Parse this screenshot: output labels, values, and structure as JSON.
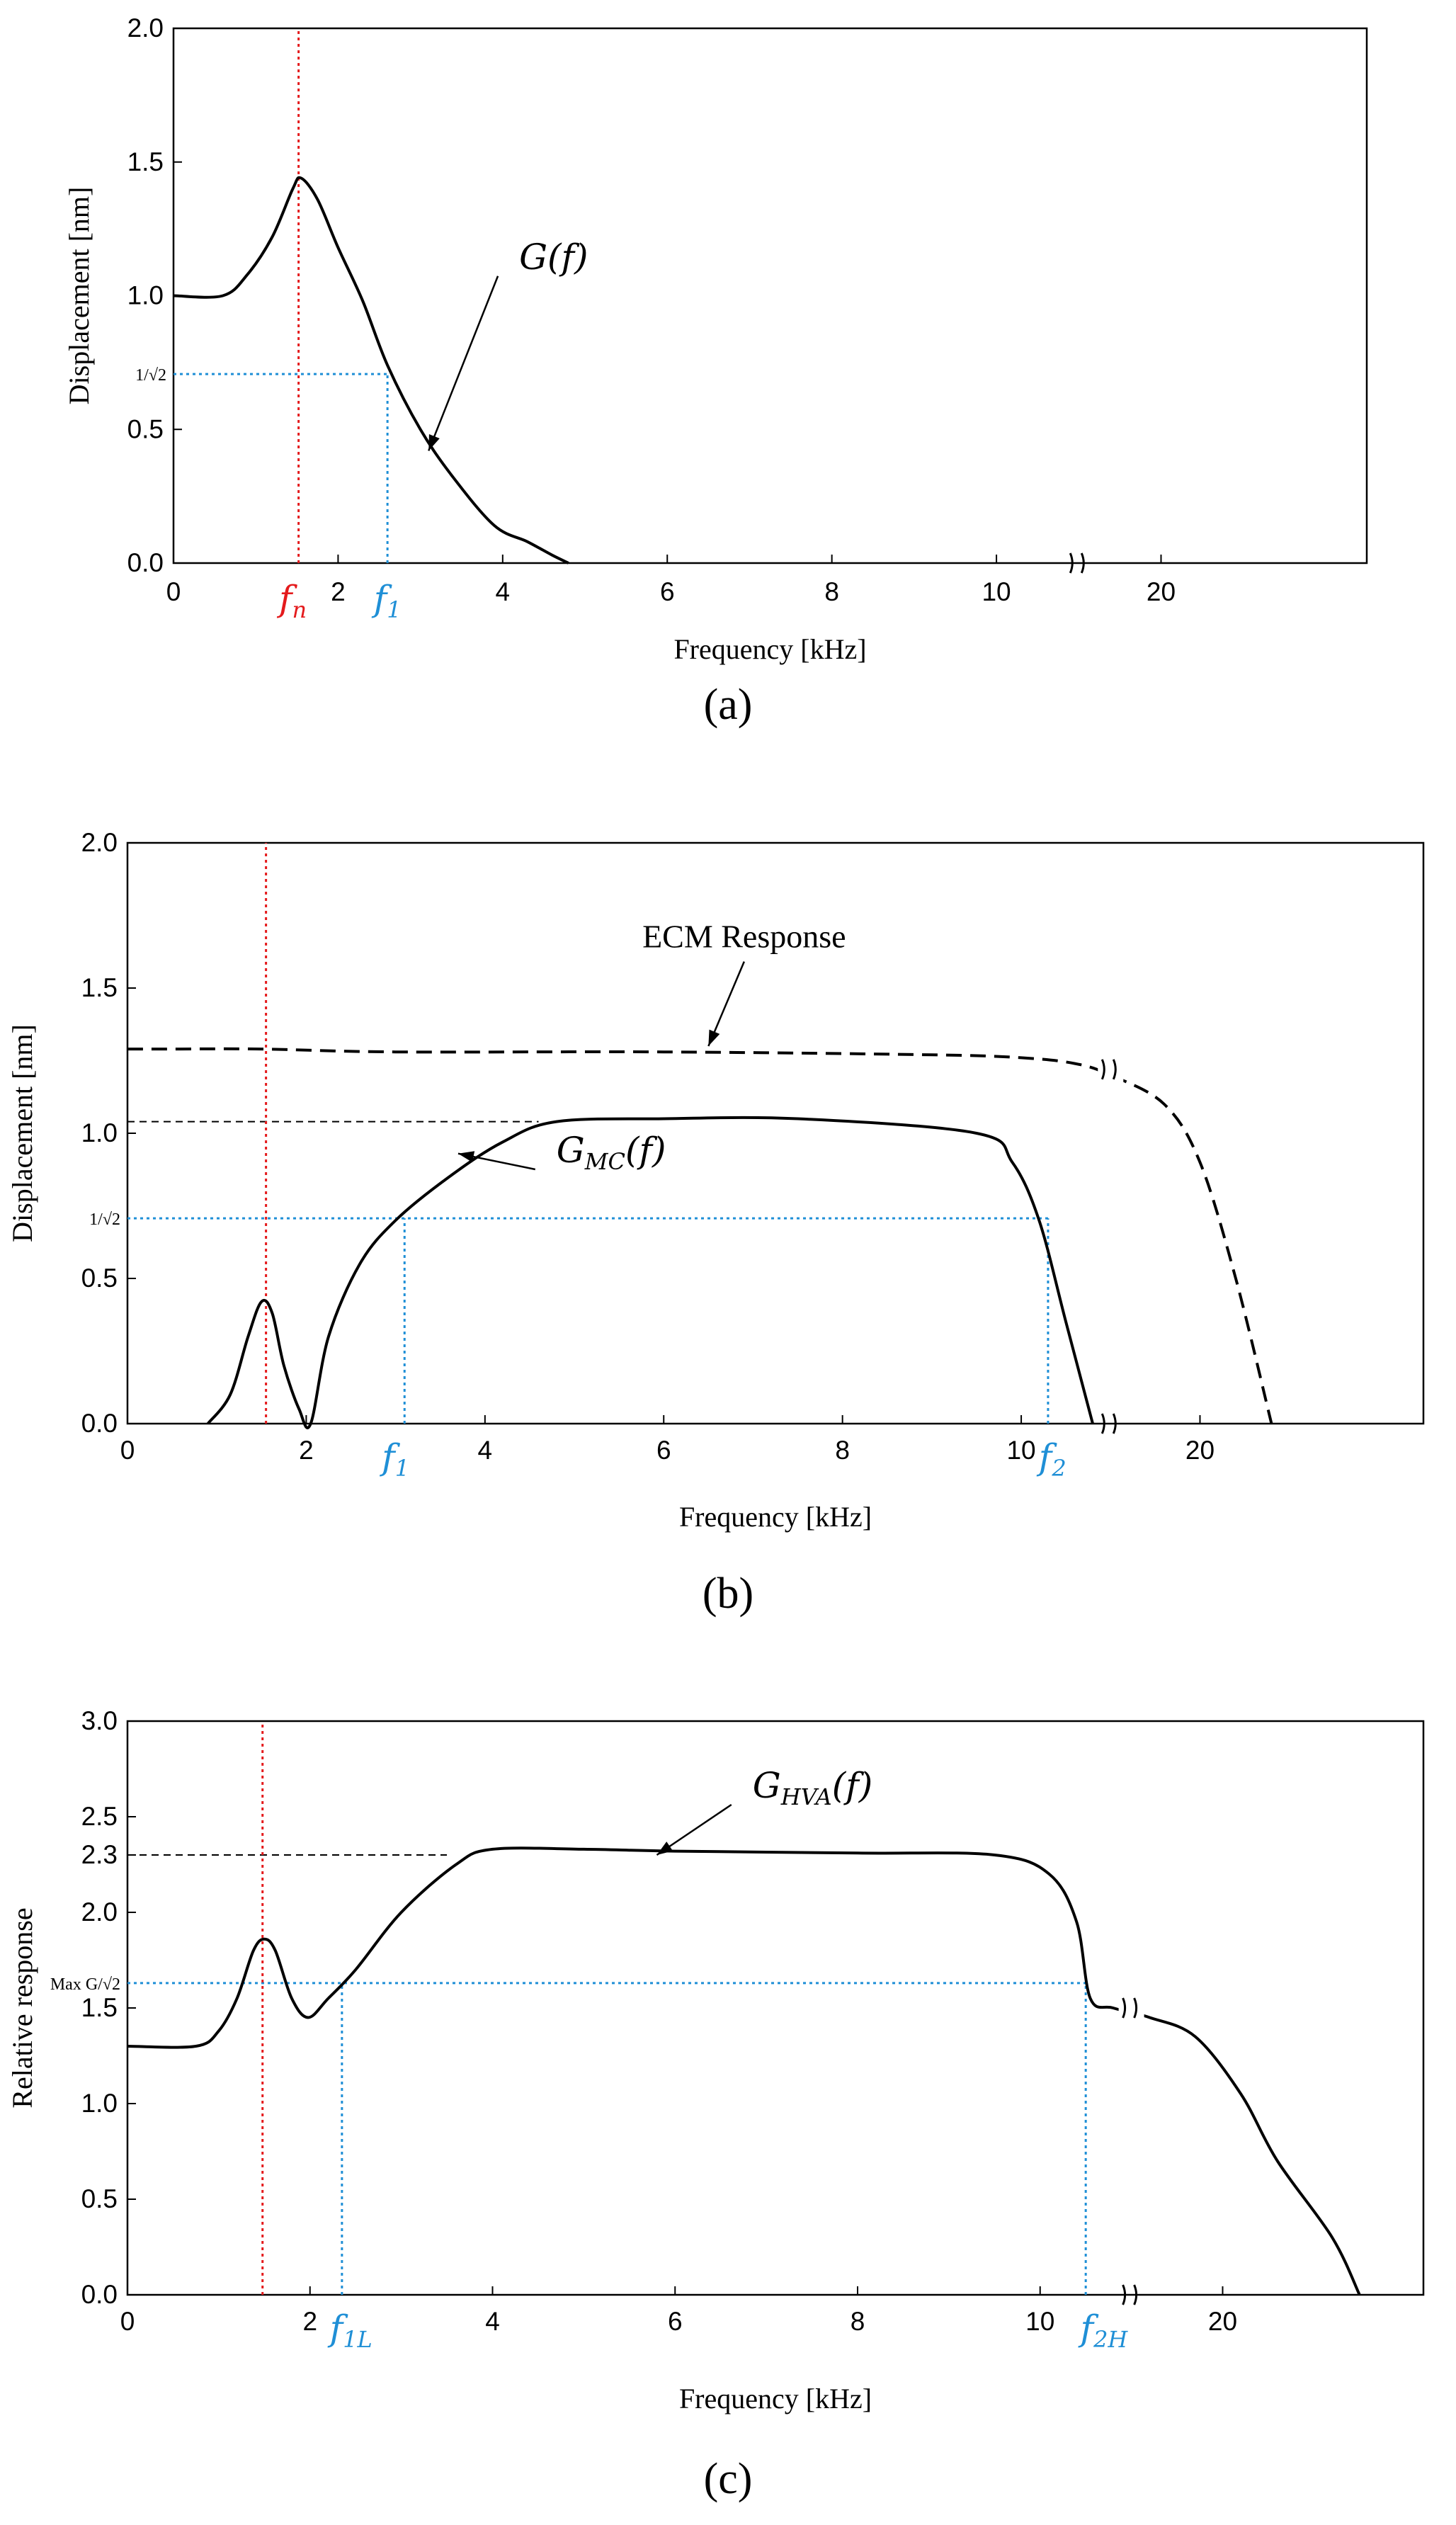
{
  "colors": {
    "marker": "#e41a1c",
    "cutoff": "#1f8fd6",
    "curve": "#000000"
  },
  "chart_data": [
    {
      "id": "a",
      "type": "line",
      "panel_label": "(a)",
      "title": "",
      "xlabel": "Frequency [kHz]",
      "ylabel": "Displacement [nm]",
      "xlim": [
        0,
        14.5
      ],
      "ylim": [
        0,
        2.0
      ],
      "x_ticks": [
        {
          "v": 0,
          "t": "0"
        },
        {
          "v": 2,
          "t": "2"
        },
        {
          "v": 4,
          "t": "4"
        },
        {
          "v": 6,
          "t": "6"
        },
        {
          "v": 8,
          "t": "8"
        },
        {
          "v": 10,
          "t": "10"
        },
        {
          "v": 12,
          "t": "20"
        }
      ],
      "y_ticks": [
        {
          "v": 0,
          "t": "0.0"
        },
        {
          "v": 0.5,
          "t": "0.5"
        },
        {
          "v": 1.0,
          "t": "1.0"
        },
        {
          "v": 1.5,
          "t": "1.5"
        },
        {
          "v": 2.0,
          "t": "2.0"
        }
      ],
      "y_special": {
        "v": 0.707,
        "t": "1/√2"
      },
      "axis_break_x": 11.0,
      "series": [
        {
          "name": "G(f)",
          "dash": false,
          "x": [
            0,
            0.6,
            0.9,
            1.2,
            1.45,
            1.55,
            1.75,
            2.0,
            2.3,
            2.6,
            3.0,
            3.4,
            3.9,
            4.3,
            4.6,
            4.8
          ],
          "y": [
            1.0,
            1.0,
            1.08,
            1.22,
            1.4,
            1.44,
            1.36,
            1.18,
            0.98,
            0.74,
            0.5,
            0.32,
            0.14,
            0.08,
            0.03,
            0.0
          ]
        }
      ],
      "vlines": [
        {
          "x": 1.52,
          "color": "marker",
          "ymax": 2.0
        },
        {
          "x": 2.6,
          "color": "cutoff",
          "ymax": 0.707
        }
      ],
      "hlines": [
        {
          "y": 0.707,
          "x0": 0,
          "x1": 2.6,
          "color": "cutoff"
        }
      ],
      "freq_markers": [
        {
          "x": 1.45,
          "t": "f",
          "sub": "n",
          "color": "marker"
        },
        {
          "x": 2.6,
          "t": "f",
          "sub": "1",
          "color": "cutoff"
        }
      ],
      "annotations": [
        {
          "t": "G",
          "arg": "(f)",
          "sub": "",
          "tx": 4.2,
          "ty": 1.1,
          "ax": 3.1,
          "ay": 0.42
        }
      ]
    },
    {
      "id": "b",
      "type": "line",
      "panel_label": "(b)",
      "title": "",
      "xlabel": "Frequency [kHz]",
      "ylabel": "Displacement [nm]",
      "xlim": [
        0,
        14.5
      ],
      "ylim": [
        0,
        2.0
      ],
      "x_ticks": [
        {
          "v": 0,
          "t": "0"
        },
        {
          "v": 2,
          "t": "2"
        },
        {
          "v": 4,
          "t": "4"
        },
        {
          "v": 6,
          "t": "6"
        },
        {
          "v": 8,
          "t": "8"
        },
        {
          "v": 10,
          "t": "10"
        },
        {
          "v": 12,
          "t": "20"
        }
      ],
      "y_ticks": [
        {
          "v": 0,
          "t": "0.0"
        },
        {
          "v": 0.5,
          "t": "0.5"
        },
        {
          "v": 1.0,
          "t": "1.0"
        },
        {
          "v": 1.5,
          "t": "1.5"
        },
        {
          "v": 2.0,
          "t": "2.0"
        }
      ],
      "y_special": {
        "v": 0.707,
        "t": "1/√2"
      },
      "axis_break_x": 11.0,
      "series": [
        {
          "name": "G_MC(f)",
          "dash": false,
          "x": [
            0.9,
            1.15,
            1.35,
            1.5,
            1.62,
            1.75,
            1.92,
            2.05,
            2.25,
            2.6,
            3.0,
            3.6,
            4.2,
            4.8,
            6.0,
            7.5,
            9.5,
            9.9,
            10.2,
            10.5,
            10.8
          ],
          "y": [
            0.0,
            0.1,
            0.3,
            0.42,
            0.38,
            0.2,
            0.05,
            0.0,
            0.3,
            0.55,
            0.7,
            0.85,
            0.97,
            1.04,
            1.05,
            1.05,
            1.0,
            0.9,
            0.7,
            0.35,
            0.0
          ]
        },
        {
          "name": "ECM Response",
          "dash": true,
          "x": [
            0,
            0.5,
            1.5,
            3.0,
            6.0,
            9.0,
            10.0,
            10.6,
            11.0,
            11.6,
            12.0,
            12.4,
            12.8
          ],
          "y": [
            1.29,
            1.29,
            1.29,
            1.28,
            1.28,
            1.27,
            1.26,
            1.24,
            1.2,
            1.1,
            0.9,
            0.5,
            0.0
          ]
        }
      ],
      "vlines": [
        {
          "x": 1.55,
          "color": "marker",
          "ymax": 2.0
        },
        {
          "x": 3.1,
          "color": "cutoff",
          "ymax": 0.707
        },
        {
          "x": 10.3,
          "color": "cutoff",
          "ymax": 0.707
        }
      ],
      "hlines": [
        {
          "y": 0.707,
          "x0": 0,
          "x1": 10.3,
          "color": "cutoff"
        },
        {
          "y": 1.04,
          "x0": 0,
          "x1": 4.6,
          "color": "black",
          "dash": true
        }
      ],
      "freq_markers": [
        {
          "x": 3.0,
          "t": "f",
          "sub": "1",
          "color": "cutoff"
        },
        {
          "x": 10.35,
          "t": "f",
          "sub": "2",
          "color": "cutoff"
        }
      ],
      "annotations": [
        {
          "t": "G",
          "arg": "(f)",
          "sub": "MC",
          "tx": 4.8,
          "ty": 0.9,
          "ax": 3.7,
          "ay": 0.93
        },
        {
          "plain": "ECM Response",
          "tx": 6.9,
          "ty": 1.64,
          "ax": 6.5,
          "ay": 1.3
        }
      ]
    },
    {
      "id": "c",
      "type": "line",
      "panel_label": "(c)",
      "title": "",
      "xlabel": "Frequency [kHz]",
      "ylabel": "Relative response",
      "xlim": [
        0,
        14.2
      ],
      "ylim": [
        0,
        3.0
      ],
      "x_ticks": [
        {
          "v": 0,
          "t": "0"
        },
        {
          "v": 2,
          "t": "2"
        },
        {
          "v": 4,
          "t": "4"
        },
        {
          "v": 6,
          "t": "6"
        },
        {
          "v": 8,
          "t": "8"
        },
        {
          "v": 10,
          "t": "10"
        },
        {
          "v": 12,
          "t": "20"
        }
      ],
      "y_ticks": [
        {
          "v": 0,
          "t": "0.0"
        },
        {
          "v": 0.5,
          "t": "0.5"
        },
        {
          "v": 1.0,
          "t": "1.0"
        },
        {
          "v": 1.5,
          "t": "1.5"
        },
        {
          "v": 2.0,
          "t": "2.0"
        },
        {
          "v": 2.5,
          "t": "2.5"
        },
        {
          "v": 3.0,
          "t": "3.0"
        }
      ],
      "y_extra": {
        "v": 2.3,
        "t": "2.3"
      },
      "y_special": {
        "v": 1.63,
        "t": "Max G/√2"
      },
      "axis_break_x": 11.0,
      "series": [
        {
          "name": "G_HVA(f)",
          "dash": false,
          "x": [
            0,
            0.75,
            1.0,
            1.2,
            1.38,
            1.5,
            1.62,
            1.8,
            1.98,
            2.2,
            2.5,
            3.0,
            3.6,
            4.0,
            5.0,
            6.0,
            8.0,
            9.5,
            10.1,
            10.4,
            10.55,
            10.8,
            11.2,
            11.7,
            12.2,
            12.6,
            13.2,
            13.5
          ],
          "y": [
            1.3,
            1.3,
            1.38,
            1.55,
            1.8,
            1.86,
            1.8,
            1.55,
            1.45,
            1.55,
            1.7,
            2.0,
            2.25,
            2.33,
            2.33,
            2.32,
            2.31,
            2.3,
            2.2,
            1.95,
            1.55,
            1.5,
            1.45,
            1.35,
            1.05,
            0.7,
            0.3,
            0.0
          ]
        }
      ],
      "vlines": [
        {
          "x": 1.48,
          "color": "marker",
          "ymax": 3.0
        },
        {
          "x": 2.35,
          "color": "cutoff",
          "ymax": 1.63
        },
        {
          "x": 10.5,
          "color": "cutoff",
          "ymax": 1.63
        }
      ],
      "hlines": [
        {
          "y": 1.63,
          "x0": 0,
          "x1": 10.5,
          "color": "cutoff"
        },
        {
          "y": 2.3,
          "x0": 0,
          "x1": 3.5,
          "color": "black",
          "dash": true
        }
      ],
      "freq_markers": [
        {
          "x": 2.45,
          "t": "f",
          "sub": "1L",
          "color": "cutoff"
        },
        {
          "x": 10.7,
          "t": "f",
          "sub": "2H",
          "color": "cutoff"
        }
      ],
      "annotations": [
        {
          "t": "G",
          "arg": "(f)",
          "sub": "HVA",
          "tx": 6.85,
          "ty": 2.6,
          "ax": 5.8,
          "ay": 2.3
        }
      ]
    }
  ]
}
